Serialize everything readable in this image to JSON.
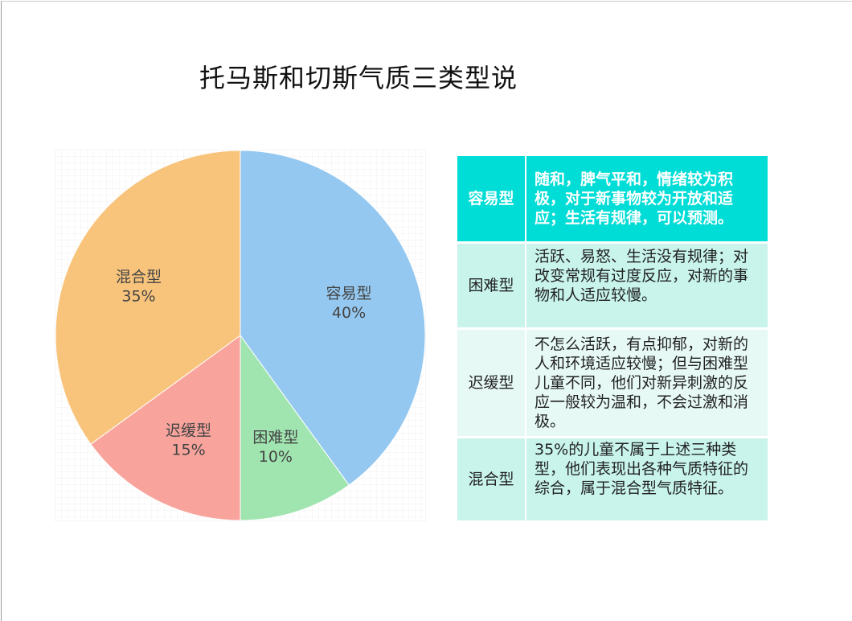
{
  "title": "托马斯和切斯气质三类型说",
  "chart_data": {
    "type": "pie",
    "categories": [
      "容易型",
      "困难型",
      "迟缓型",
      "混合型"
    ],
    "values": [
      40,
      10,
      15,
      35
    ],
    "labels": [
      "40%",
      "10%",
      "15%",
      "35%"
    ],
    "colors": [
      "#94c8f0",
      "#a0e4b0",
      "#f8a49c",
      "#f8c47c"
    ],
    "start": "top",
    "direction": "clockwise",
    "legend": "none"
  },
  "table": {
    "rows": [
      {
        "type": "容易型",
        "desc": "随和，脾气平和，情绪较为积极，对于新事物较为开放和适应；生活有规律，可以预测。"
      },
      {
        "type": "困难型",
        "desc": "活跃、易怒、生活没有规律；对改变常规有过度反应，对新的事物和人适应较慢。"
      },
      {
        "type": "迟缓型",
        "desc": "不怎么活跃，有点抑郁，对新的人和环境适应较慢；但与困难型儿童不同，他们对新异刺激的反应一般较为温和，不会过激和消极。"
      },
      {
        "type": "混合型",
        "desc": "35%的儿童不属于上述三种类型，他们表现出各种气质特征的综合，属于混合型气质特征。"
      }
    ]
  }
}
